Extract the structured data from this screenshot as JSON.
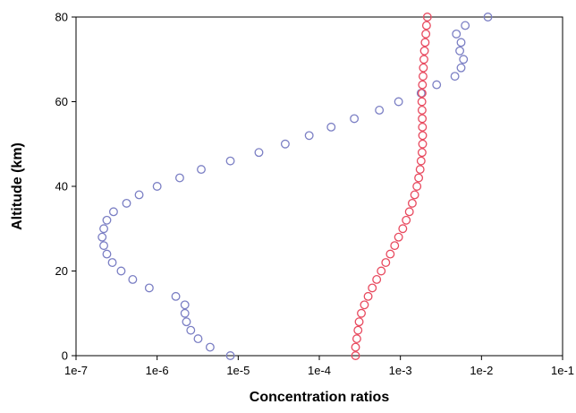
{
  "chart_data": {
    "type": "scatter",
    "title": "",
    "xlabel": "Concentration ratios",
    "ylabel": "Altitude (km)",
    "xscale": "log",
    "xlim": [
      1e-07,
      0.1
    ],
    "ylim": [
      0,
      80
    ],
    "x_tick_labels": [
      "1e-7",
      "1e-6",
      "1e-5",
      "1e-4",
      "1e-3",
      "1e-2",
      "1e-1"
    ],
    "x_tick_values": [
      1e-07,
      1e-06,
      1e-05,
      0.0001,
      0.001,
      0.01,
      0.1
    ],
    "y_tick_labels": [
      "0",
      "20",
      "40",
      "60",
      "80"
    ],
    "y_tick_values": [
      0,
      20,
      40,
      60,
      80
    ],
    "grid": false,
    "legend": "none",
    "marker": "open-circle",
    "series": [
      {
        "color": "#7b7fc4",
        "points": [
          [
            8e-06,
            0
          ],
          [
            4.5e-06,
            2
          ],
          [
            3.2e-06,
            4
          ],
          [
            2.6e-06,
            6
          ],
          [
            2.3e-06,
            8
          ],
          [
            2.2e-06,
            10
          ],
          [
            2.2e-06,
            12
          ],
          [
            1.7e-06,
            14
          ],
          [
            8e-07,
            16
          ],
          [
            5e-07,
            18
          ],
          [
            3.6e-07,
            20
          ],
          [
            2.8e-07,
            22
          ],
          [
            2.4e-07,
            24
          ],
          [
            2.2e-07,
            26
          ],
          [
            2.1e-07,
            28
          ],
          [
            2.2e-07,
            30
          ],
          [
            2.4e-07,
            32
          ],
          [
            2.9e-07,
            34
          ],
          [
            4.2e-07,
            36
          ],
          [
            6e-07,
            38
          ],
          [
            1e-06,
            40
          ],
          [
            1.9e-06,
            42
          ],
          [
            3.5e-06,
            44
          ],
          [
            8e-06,
            46
          ],
          [
            1.8e-05,
            48
          ],
          [
            3.8e-05,
            50
          ],
          [
            7.5e-05,
            52
          ],
          [
            0.00014,
            54
          ],
          [
            0.00027,
            56
          ],
          [
            0.00055,
            58
          ],
          [
            0.00095,
            60
          ],
          [
            0.0018,
            62
          ],
          [
            0.0028,
            64
          ],
          [
            0.0047,
            66
          ],
          [
            0.0056,
            68
          ],
          [
            0.006,
            70
          ],
          [
            0.0054,
            72
          ],
          [
            0.0056,
            74
          ],
          [
            0.0049,
            76
          ],
          [
            0.0063,
            78
          ],
          [
            0.012,
            80
          ]
        ]
      },
      {
        "color": "#e84a5f",
        "points": [
          [
            0.00028,
            0
          ],
          [
            0.00028,
            2
          ],
          [
            0.00029,
            4
          ],
          [
            0.0003,
            6
          ],
          [
            0.00031,
            8
          ],
          [
            0.00033,
            10
          ],
          [
            0.00036,
            12
          ],
          [
            0.0004,
            14
          ],
          [
            0.00045,
            16
          ],
          [
            0.00051,
            18
          ],
          [
            0.00058,
            20
          ],
          [
            0.00066,
            22
          ],
          [
            0.00075,
            24
          ],
          [
            0.00085,
            26
          ],
          [
            0.00095,
            28
          ],
          [
            0.00107,
            30
          ],
          [
            0.00118,
            32
          ],
          [
            0.00129,
            34
          ],
          [
            0.0014,
            36
          ],
          [
            0.0015,
            38
          ],
          [
            0.0016,
            40
          ],
          [
            0.00168,
            42
          ],
          [
            0.00175,
            44
          ],
          [
            0.0018,
            46
          ],
          [
            0.00185,
            48
          ],
          [
            0.00188,
            50
          ],
          [
            0.00188,
            52
          ],
          [
            0.00187,
            54
          ],
          [
            0.00186,
            56
          ],
          [
            0.00185,
            58
          ],
          [
            0.00184,
            60
          ],
          [
            0.00185,
            62
          ],
          [
            0.00187,
            64
          ],
          [
            0.0019,
            66
          ],
          [
            0.00192,
            68
          ],
          [
            0.00195,
            70
          ],
          [
            0.00198,
            72
          ],
          [
            0.00202,
            74
          ],
          [
            0.00206,
            76
          ],
          [
            0.0021,
            78
          ],
          [
            0.00215,
            80
          ]
        ]
      }
    ]
  }
}
